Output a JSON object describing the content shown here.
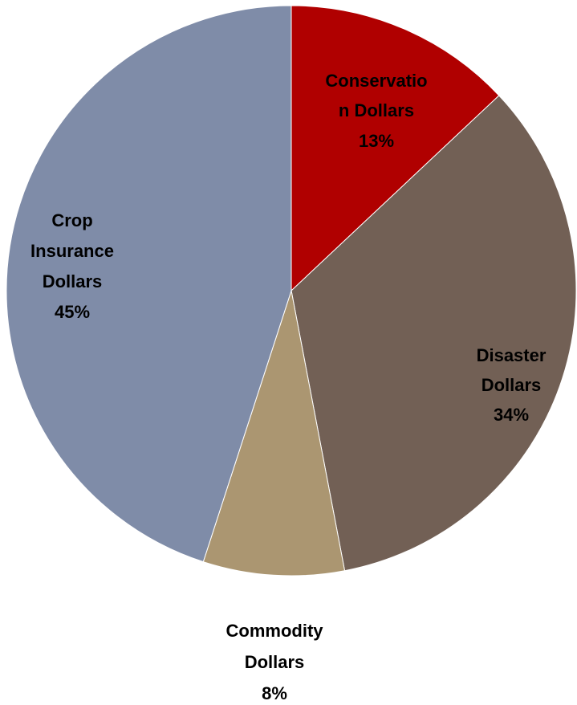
{
  "chart_data": {
    "type": "pie",
    "title": "",
    "legend": "none",
    "slices": [
      {
        "label_lines": [
          "Conservatio",
          "n Dollars"
        ],
        "percent_text": "13%",
        "value": 13,
        "color": "#b00000"
      },
      {
        "label_lines": [
          "Disaster",
          "Dollars"
        ],
        "percent_text": "34%",
        "value": 34,
        "color": "#726055"
      },
      {
        "label_lines": [
          "Commodity",
          "Dollars"
        ],
        "percent_text": "8%",
        "value": 8,
        "color": "#ab9671"
      },
      {
        "label_lines": [
          "Crop",
          "Insurance",
          "Dollars"
        ],
        "percent_text": "45%",
        "value": 45,
        "color": "#7f8ca8"
      }
    ]
  }
}
